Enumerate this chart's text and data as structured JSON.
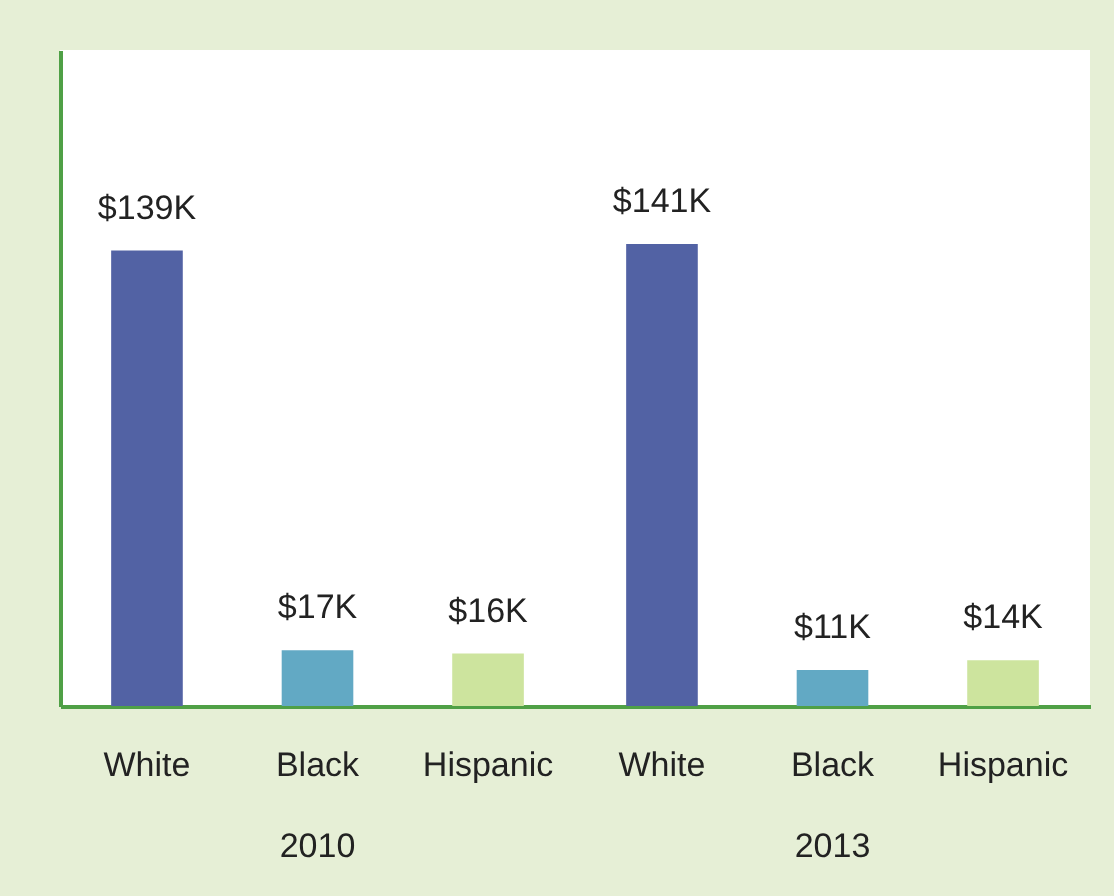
{
  "chart_data": {
    "type": "bar",
    "categories": [
      "2010",
      "2013"
    ],
    "series": [
      {
        "name": "White",
        "color": "#5262a4",
        "values": [
          139,
          141
        ],
        "value_labels": [
          "$139K",
          "$141K"
        ]
      },
      {
        "name": "Black",
        "color": "#62a9c4",
        "values": [
          17,
          11
        ],
        "value_labels": [
          "$17K",
          "$11K"
        ]
      },
      {
        "name": "Hispanic",
        "color": "#cde49e",
        "values": [
          16,
          14
        ],
        "value_labels": [
          "$16K",
          "$14K"
        ]
      }
    ],
    "tick_labels": "x"
  }
}
